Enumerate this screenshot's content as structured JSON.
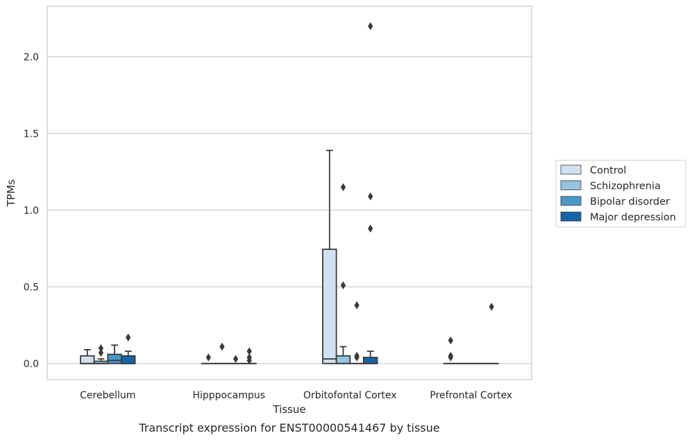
{
  "chart_data": {
    "type": "box",
    "title": "",
    "caption": "Transcript expression for ENST00000541467 by tissue",
    "xlabel": "Tissue",
    "ylabel": "TPMs",
    "ylim": [
      -0.105,
      2.33
    ],
    "yticks": [
      0.0,
      0.5,
      1.0,
      1.5,
      2.0
    ],
    "ytick_labels": [
      "0.0",
      "0.5",
      "1.0",
      "1.5",
      "2.0"
    ],
    "grid": "horizontal",
    "legend_position": "right",
    "categories": [
      "Cerebellum",
      "Hipppocampus",
      "Orbitofontal Cortex",
      "Prefrontal Cortex"
    ],
    "series": [
      {
        "name": "Control",
        "color": "#d0e1f2",
        "boxes": [
          {
            "q1": 0.0,
            "median": 0.0,
            "q3": 0.05,
            "whisker_low": 0.0,
            "whisker_high": 0.09,
            "outliers": []
          },
          {
            "q1": 0.0,
            "median": 0.0,
            "q3": 0.0,
            "whisker_low": 0.0,
            "whisker_high": 0.0,
            "outliers": [
              0.04
            ]
          },
          {
            "q1": 0.0,
            "median": 0.03,
            "q3": 0.745,
            "whisker_low": 0.0,
            "whisker_high": 1.39,
            "outliers": []
          },
          {
            "q1": 0.0,
            "median": 0.0,
            "q3": 0.0,
            "whisker_low": 0.0,
            "whisker_high": 0.0,
            "outliers": [
              0.15,
              0.05,
              0.04
            ]
          }
        ]
      },
      {
        "name": "Schizophrenia",
        "color": "#94c4df",
        "boxes": [
          {
            "q1": 0.0,
            "median": 0.0,
            "q3": 0.015,
            "whisker_low": 0.0,
            "whisker_high": 0.03,
            "outliers": [
              0.1,
              0.07
            ]
          },
          {
            "q1": 0.0,
            "median": 0.0,
            "q3": 0.0,
            "whisker_low": 0.0,
            "whisker_high": 0.0,
            "outliers": [
              0.11
            ]
          },
          {
            "q1": 0.0,
            "median": 0.0,
            "q3": 0.05,
            "whisker_low": 0.0,
            "whisker_high": 0.11,
            "outliers": [
              1.15,
              0.51
            ]
          },
          {
            "q1": 0.0,
            "median": 0.0,
            "q3": 0.0,
            "whisker_low": 0.0,
            "whisker_high": 0.0,
            "outliers": []
          }
        ]
      },
      {
        "name": "Bipolar disorder",
        "color": "#4a98c9",
        "boxes": [
          {
            "q1": 0.0,
            "median": 0.02,
            "q3": 0.06,
            "whisker_low": 0.0,
            "whisker_high": 0.12,
            "outliers": []
          },
          {
            "q1": 0.0,
            "median": 0.0,
            "q3": 0.0,
            "whisker_low": 0.0,
            "whisker_high": 0.0,
            "outliers": [
              0.03
            ]
          },
          {
            "q1": 0.0,
            "median": 0.0,
            "q3": 0.0,
            "whisker_low": 0.0,
            "whisker_high": 0.0,
            "outliers": [
              0.38,
              0.05,
              0.04
            ]
          },
          {
            "q1": 0.0,
            "median": 0.0,
            "q3": 0.0,
            "whisker_low": 0.0,
            "whisker_high": 0.0,
            "outliers": []
          }
        ]
      },
      {
        "name": "Major depression",
        "color": "#1764ab",
        "boxes": [
          {
            "q1": 0.0,
            "median": 0.0,
            "q3": 0.05,
            "whisker_low": 0.0,
            "whisker_high": 0.08,
            "outliers": [
              0.17
            ]
          },
          {
            "q1": 0.0,
            "median": 0.0,
            "q3": 0.0,
            "whisker_low": 0.0,
            "whisker_high": 0.0,
            "outliers": [
              0.08,
              0.04,
              0.02
            ]
          },
          {
            "q1": 0.0,
            "median": 0.0,
            "q3": 0.04,
            "whisker_low": 0.0,
            "whisker_high": 0.08,
            "outliers": [
              2.2,
              1.09,
              0.88
            ]
          },
          {
            "q1": 0.0,
            "median": 0.0,
            "q3": 0.0,
            "whisker_low": 0.0,
            "whisker_high": 0.0,
            "outliers": [
              0.37
            ]
          }
        ]
      }
    ]
  },
  "colors": {
    "frame": "#cccccc",
    "grid": "#cccccc",
    "line": "#3a3a3a",
    "text": "#262626"
  }
}
